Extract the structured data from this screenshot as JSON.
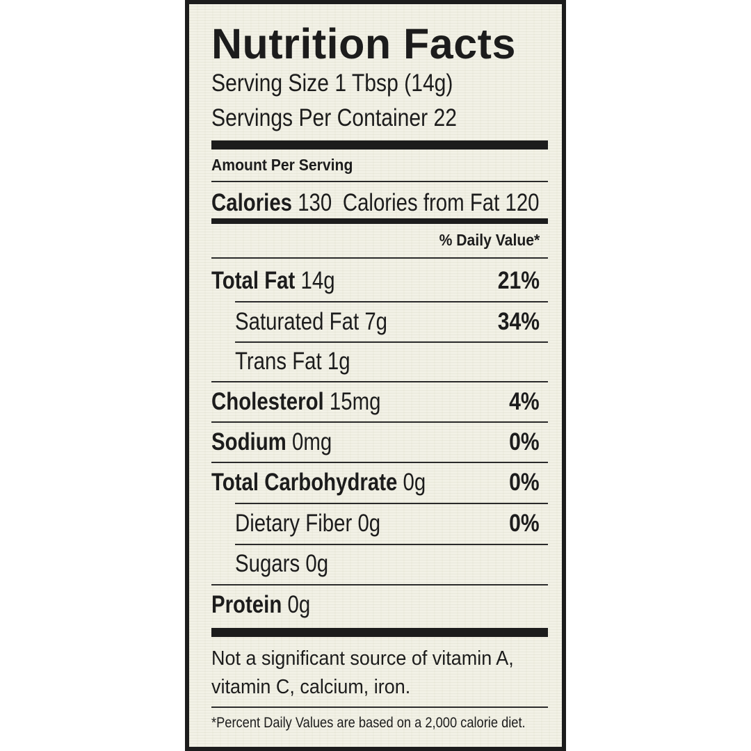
{
  "label": {
    "title": "Nutrition Facts",
    "serving_size": "Serving Size 1 Tbsp (14g)",
    "servings_per_container": "Servings Per Container 22",
    "amount_per_serving": "Amount Per Serving",
    "calories_label": "Calories",
    "calories_value": "130",
    "calories_from_fat": "Calories from Fat 120",
    "daily_value_header": "% Daily Value*",
    "rows": [
      {
        "name": "Total Fat",
        "amount": "14g",
        "dv": "21%"
      },
      {
        "name": "Saturated Fat",
        "amount": "7g",
        "dv": "34%"
      },
      {
        "name": "Trans Fat",
        "amount": "1g",
        "dv": ""
      },
      {
        "name": "Cholesterol",
        "amount": "15mg",
        "dv": "4%"
      },
      {
        "name": "Sodium",
        "amount": "0mg",
        "dv": "0%"
      },
      {
        "name": "Total Carbohydrate",
        "amount": "0g",
        "dv": "0%"
      },
      {
        "name": "Dietary Fiber",
        "amount": "0g",
        "dv": "0%"
      },
      {
        "name": "Sugars",
        "amount": "0g",
        "dv": ""
      },
      {
        "name": "Protein",
        "amount": "0g",
        "dv": ""
      }
    ],
    "vitamin_note": "Not a significant source of vitamin A, vitamin C, calcium, iron.",
    "footnote": "*Percent Daily Values are based on a 2,000 calorie diet."
  }
}
